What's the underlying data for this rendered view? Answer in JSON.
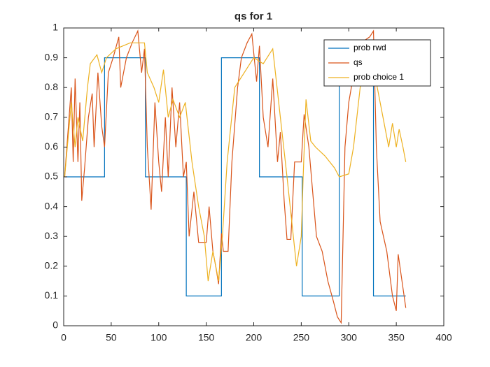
{
  "chart_data": {
    "type": "line",
    "title": "qs for 1",
    "legend": "northeast",
    "grid": false,
    "xlim": [
      0,
      400
    ],
    "xticks": [
      0,
      50,
      100,
      150,
      200,
      250,
      300,
      350,
      400
    ],
    "ylim": [
      0,
      1
    ],
    "yticks": [
      0,
      0.1,
      0.2,
      0.3,
      0.4,
      0.5,
      0.6,
      0.7,
      0.8,
      0.9,
      1
    ],
    "series": [
      {
        "name": "prob rwd",
        "color": "#0072BD",
        "x": [
          1,
          43,
          43,
          86,
          86,
          129,
          129,
          166,
          166,
          206,
          206,
          251,
          251,
          290,
          290,
          326,
          326,
          360
        ],
        "values": [
          0.5,
          0.5,
          0.9,
          0.9,
          0.5,
          0.5,
          0.1,
          0.1,
          0.9,
          0.9,
          0.5,
          0.5,
          0.1,
          0.1,
          0.9,
          0.9,
          0.1,
          0.1
        ]
      },
      {
        "name": "qs",
        "color": "#D95319",
        "x": [
          1,
          8,
          10,
          12,
          15,
          17,
          19,
          22,
          26,
          30,
          32,
          36,
          40,
          43,
          47,
          52,
          58,
          60,
          66,
          72,
          78,
          82,
          85,
          88,
          92,
          96,
          100,
          103,
          107,
          110,
          114,
          118,
          122,
          126,
          129,
          132,
          137,
          142,
          150,
          153,
          157,
          160,
          163,
          166,
          168,
          173,
          177,
          183,
          187,
          193,
          198,
          203,
          206,
          210,
          215,
          220,
          225,
          228,
          232,
          235,
          239,
          243,
          250,
          253,
          258,
          262,
          266,
          272,
          278,
          284,
          288,
          292,
          296,
          300,
          307,
          313,
          322,
          326,
          329,
          333,
          340,
          346,
          350,
          352,
          356,
          360
        ],
        "values": [
          0.5,
          0.8,
          0.55,
          0.83,
          0.55,
          0.75,
          0.42,
          0.53,
          0.7,
          0.78,
          0.6,
          0.85,
          0.67,
          0.6,
          0.85,
          0.9,
          0.97,
          0.8,
          0.9,
          0.95,
          0.99,
          0.85,
          0.93,
          0.6,
          0.39,
          0.75,
          0.55,
          0.45,
          0.7,
          0.5,
          0.8,
          0.6,
          0.75,
          0.5,
          0.55,
          0.3,
          0.45,
          0.28,
          0.28,
          0.4,
          0.25,
          0.2,
          0.14,
          0.31,
          0.25,
          0.25,
          0.55,
          0.8,
          0.9,
          0.95,
          0.98,
          0.82,
          0.94,
          0.7,
          0.6,
          0.83,
          0.55,
          0.65,
          0.42,
          0.29,
          0.29,
          0.55,
          0.55,
          0.71,
          0.6,
          0.45,
          0.3,
          0.25,
          0.15,
          0.08,
          0.03,
          0.01,
          0.6,
          0.75,
          0.88,
          0.95,
          0.97,
          0.99,
          0.6,
          0.35,
          0.25,
          0.1,
          0.05,
          0.24,
          0.15,
          0.06
        ]
      },
      {
        "name": "prob choice 1",
        "color": "#EDB120",
        "x": [
          1,
          8,
          12,
          15,
          20,
          25,
          28,
          35,
          40,
          45,
          55,
          70,
          85,
          88,
          95,
          100,
          105,
          110,
          115,
          122,
          128,
          135,
          142,
          148,
          152,
          157,
          163,
          167,
          172,
          180,
          190,
          200,
          210,
          220,
          228,
          235,
          240,
          245,
          250,
          252,
          255,
          260,
          265,
          275,
          285,
          290,
          300,
          305,
          312,
          318,
          325,
          330,
          336,
          342,
          346,
          350,
          353,
          357,
          360
        ],
        "values": [
          0.5,
          0.75,
          0.6,
          0.7,
          0.62,
          0.8,
          0.88,
          0.91,
          0.85,
          0.9,
          0.93,
          0.95,
          0.95,
          0.85,
          0.8,
          0.75,
          0.86,
          0.7,
          0.76,
          0.7,
          0.75,
          0.55,
          0.4,
          0.3,
          0.15,
          0.25,
          0.15,
          0.3,
          0.55,
          0.8,
          0.85,
          0.9,
          0.88,
          0.93,
          0.7,
          0.5,
          0.35,
          0.2,
          0.3,
          0.5,
          0.76,
          0.62,
          0.6,
          0.57,
          0.53,
          0.5,
          0.51,
          0.6,
          0.8,
          0.88,
          0.9,
          0.8,
          0.7,
          0.6,
          0.68,
          0.6,
          0.66,
          0.6,
          0.55
        ]
      }
    ]
  }
}
